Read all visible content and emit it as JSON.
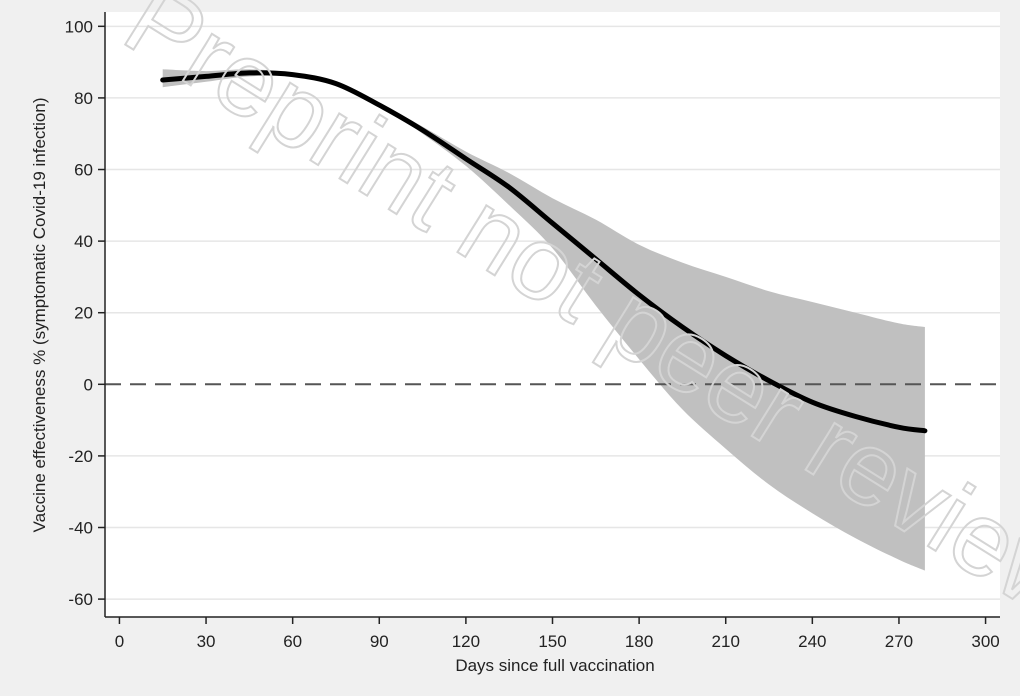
{
  "watermark": "Preprint not peer reviewed",
  "chart_data": {
    "type": "line",
    "xlabel": "Days since full vaccination",
    "ylabel": "Vaccine effectiveness % (symptomatic Covid-19 infection)",
    "xlim": [
      -5,
      305
    ],
    "ylim": [
      -65,
      104
    ],
    "x_ticks": [
      0,
      30,
      60,
      90,
      120,
      150,
      180,
      210,
      240,
      270,
      300
    ],
    "y_ticks": [
      100,
      80,
      60,
      40,
      20,
      0,
      -20,
      -40,
      -60
    ],
    "grid": true,
    "reference_line": {
      "y": 0,
      "style": "dashed"
    },
    "series": [
      {
        "x": [
          15,
          30,
          45,
          60,
          75,
          90,
          105,
          120,
          135,
          150,
          165,
          180,
          195,
          210,
          225,
          240,
          255,
          270,
          279
        ],
        "y": [
          85,
          86,
          87,
          86.5,
          84,
          78,
          71,
          63,
          55,
          45,
          35,
          25,
          16,
          8,
          1,
          -5,
          -9,
          -12,
          -13
        ],
        "lower": [
          83,
          84.5,
          86,
          86,
          84,
          78,
          70,
          61,
          50,
          38,
          22,
          7,
          -7,
          -18,
          -28,
          -36,
          -43,
          -49,
          -52
        ],
        "upper": [
          88,
          87.5,
          88,
          87,
          84.5,
          78.5,
          72,
          65,
          59,
          52,
          46,
          39,
          34,
          30,
          26,
          23,
          20,
          17,
          16
        ],
        "color": "#000000",
        "band_color": "#c0c0c0"
      }
    ]
  }
}
